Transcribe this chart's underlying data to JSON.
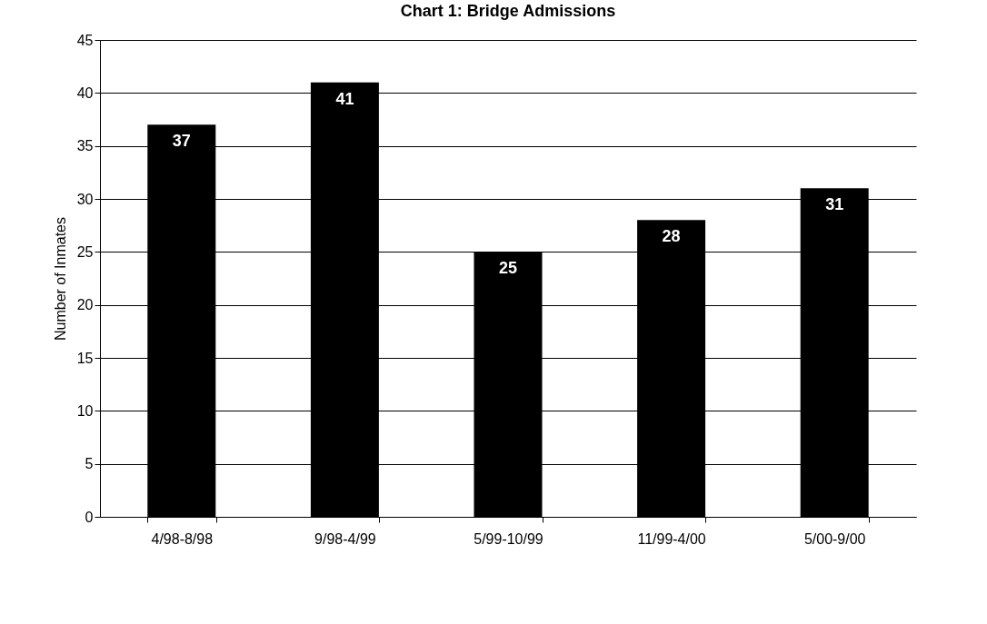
{
  "chart_data": {
    "type": "bar",
    "title": "Chart 1:  Bridge Admissions",
    "ylabel": "Number of Inmates",
    "categories": [
      "4/98-8/98",
      "9/98-4/99",
      "5/99-10/99",
      "11/99-4/00",
      "5/00-9/00"
    ],
    "values": [
      37,
      41,
      25,
      28,
      31
    ],
    "color": "#000000",
    "ylim": [
      0,
      45
    ],
    "yticks": [
      0,
      5,
      10,
      15,
      20,
      25,
      30,
      35,
      40,
      45
    ],
    "grid": "y",
    "data_labels": true
  }
}
